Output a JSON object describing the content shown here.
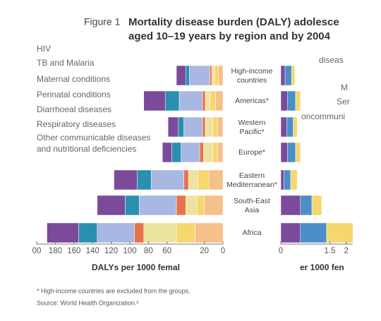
{
  "figure_label": "Figure 1",
  "notes": [
    "* High-income countries are excluded from the groups.",
    "Source: World Health Organization.²"
  ],
  "chart_data": [
    {
      "type": "stacked-bar-horizontal",
      "title": "Mortality disease burden (DALY) adolesce",
      "subtitle": "aged 10–19 years by region and by 2004",
      "x_label": "DALYs per 1000 femal",
      "direction": "right-to-left",
      "categories": [
        "High-income countries",
        "Americas*",
        "Western Pacific*",
        "Europe*",
        "Eastern Mediterranean*",
        "South-East Asia",
        "Africa"
      ],
      "xlim": [
        0,
        200
      ],
      "xticks": [
        {
          "value": 200,
          "label": "00"
        },
        180,
        160,
        140,
        120,
        100,
        80,
        60,
        20,
        0
      ],
      "series": [
        {
          "name": "HIV",
          "color": "#7b4a9a",
          "values": [
            10,
            23,
            11,
            10,
            25,
            30,
            34
          ]
        },
        {
          "name": "TB and Malaria",
          "color": "#2a8fb0",
          "values": [
            4,
            15,
            6,
            10,
            15,
            15,
            20
          ]
        },
        {
          "name": "Maternal conditions",
          "color": "#a9b8e2",
          "values": [
            22,
            25,
            20,
            20,
            35,
            40,
            40
          ]
        },
        {
          "name": "Perinatal conditions",
          "color": "#e8734a",
          "values": [
            2,
            3,
            3,
            4,
            5,
            10,
            10
          ]
        },
        {
          "name": "Diarrhoeal diseases",
          "color": "#ede3a0",
          "values": [
            3,
            5,
            8,
            10,
            10,
            12,
            35
          ]
        },
        {
          "name": "Respiratory diseases",
          "color": "#f5d76e",
          "values": [
            4,
            6,
            5,
            5,
            12,
            8,
            20
          ]
        },
        {
          "name": "Other communicable diseases and nutritional deficiencies",
          "color": "#f6c08a",
          "values": [
            5,
            8,
            6,
            6,
            15,
            20,
            30
          ]
        }
      ]
    },
    {
      "type": "stacked-bar-horizontal",
      "x_label": "er 1000 fen",
      "direction": "left-to-right",
      "legend_labels": [
        "diseas",
        "M",
        "Ser",
        "oncommuni"
      ],
      "xlim": [
        0,
        2.2
      ],
      "xticks": [
        0,
        1.5,
        2
      ],
      "series": [
        {
          "color": "#f5d76e",
          "values": [
            0.1,
            0.15,
            0.12,
            0.15,
            0.2,
            0.3,
            0.9
          ]
        },
        {
          "color": "#4a8fc8",
          "values": [
            0.2,
            0.25,
            0.2,
            0.25,
            0.2,
            0.35,
            0.8
          ]
        },
        {
          "color": "#7b4a9a",
          "values": [
            0.13,
            0.2,
            0.18,
            0.2,
            0.1,
            0.6,
            0.6
          ]
        }
      ]
    }
  ]
}
